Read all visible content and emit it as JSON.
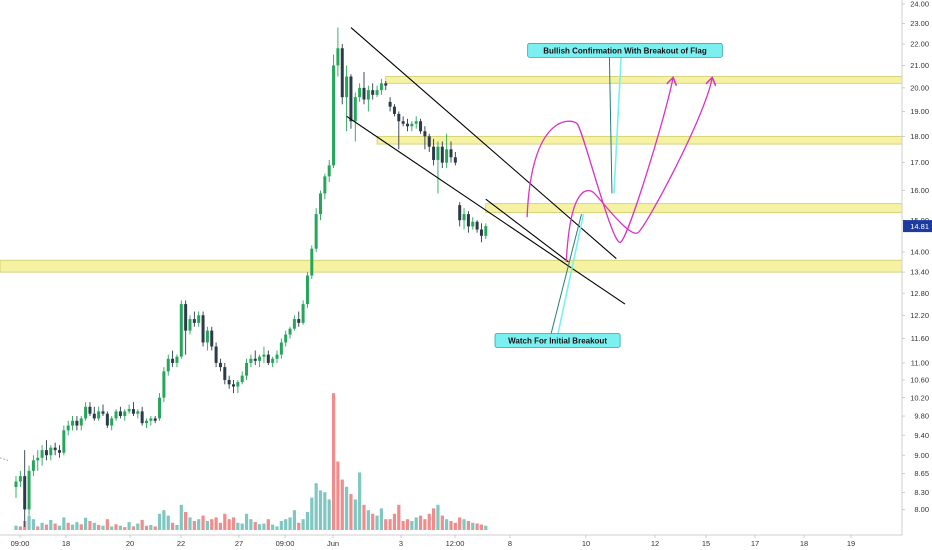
{
  "chart_data": {
    "type": "candlestick",
    "title": "",
    "xlabel": "",
    "ylabel": "",
    "y_scale": "log",
    "ylim": [
      7.65,
      24.0
    ],
    "y_ticks": [
      "24.00",
      "23.00",
      "22.00",
      "21.00",
      "20.00",
      "19.00",
      "18.00",
      "17.00",
      "16.00",
      "15.00",
      "14.00",
      "13.40",
      "12.80",
      "12.20",
      "11.60",
      "11.00",
      "10.60",
      "10.20",
      "9.80",
      "9.40",
      "9.00",
      "8.65",
      "8.30",
      "8.00"
    ],
    "x_ticks": [
      "09:00",
      "18",
      "20",
      "22",
      "27",
      "09:00",
      "Jun",
      "3",
      "12:00",
      "8",
      "10",
      "12",
      "15",
      "17",
      "18",
      "19"
    ],
    "current_price": "14.81",
    "grid": false,
    "colors": {
      "up": "#26a65b",
      "down": "#2c3a4a",
      "vol_up": "#7fc7c0",
      "vol_down": "#f08c8c",
      "zone": "#f5f29a",
      "zone_border": "#c9c55a",
      "projection": "#d633c8",
      "callout": "#7cf0f0",
      "price_tag": "#1c3aa0"
    },
    "candles": [
      [
        8.4,
        8.6,
        8.2,
        8.5
      ],
      [
        8.5,
        8.7,
        8.4,
        8.6
      ],
      [
        8.6,
        9.1,
        7.7,
        8.0
      ],
      [
        8.0,
        8.8,
        7.9,
        8.7
      ],
      [
        8.7,
        9.0,
        8.6,
        8.9
      ],
      [
        8.9,
        9.1,
        8.7,
        8.95
      ],
      [
        8.95,
        9.2,
        8.8,
        9.1
      ],
      [
        9.1,
        9.3,
        8.9,
        9.0
      ],
      [
        9.0,
        9.2,
        8.9,
        9.15
      ],
      [
        9.15,
        9.25,
        9.0,
        9.1
      ],
      [
        9.1,
        9.2,
        8.95,
        9.05
      ],
      [
        9.05,
        9.6,
        9.0,
        9.5
      ],
      [
        9.5,
        9.7,
        9.4,
        9.6
      ],
      [
        9.6,
        9.8,
        9.5,
        9.7
      ],
      [
        9.7,
        9.8,
        9.5,
        9.6
      ],
      [
        9.6,
        9.8,
        9.5,
        9.75
      ],
      [
        9.75,
        10.1,
        9.7,
        10.0
      ],
      [
        10.0,
        10.1,
        9.8,
        9.85
      ],
      [
        9.85,
        10.0,
        9.7,
        9.75
      ],
      [
        9.75,
        10.0,
        9.7,
        9.9
      ],
      [
        9.9,
        10.05,
        9.8,
        9.85
      ],
      [
        9.85,
        9.9,
        9.55,
        9.6
      ],
      [
        9.6,
        9.8,
        9.5,
        9.75
      ],
      [
        9.75,
        9.95,
        9.7,
        9.9
      ],
      [
        9.9,
        10.0,
        9.75,
        9.8
      ],
      [
        9.8,
        9.95,
        9.7,
        9.9
      ],
      [
        9.9,
        10.05,
        9.85,
        9.95
      ],
      [
        9.95,
        10.1,
        9.8,
        9.85
      ],
      [
        9.85,
        9.95,
        9.75,
        9.9
      ],
      [
        9.9,
        10.0,
        9.6,
        9.65
      ],
      [
        9.65,
        9.75,
        9.55,
        9.7
      ],
      [
        9.7,
        9.8,
        9.6,
        9.75
      ],
      [
        9.75,
        9.8,
        9.65,
        9.7
      ],
      [
        9.75,
        10.3,
        9.7,
        10.2
      ],
      [
        10.2,
        10.9,
        10.1,
        10.8
      ],
      [
        10.8,
        11.2,
        10.7,
        11.1
      ],
      [
        11.1,
        11.3,
        10.9,
        11.0
      ],
      [
        11.0,
        11.2,
        10.9,
        11.15
      ],
      [
        11.15,
        12.6,
        11.1,
        12.5
      ],
      [
        12.5,
        12.6,
        11.2,
        11.8
      ],
      [
        11.8,
        12.2,
        11.7,
        12.1
      ],
      [
        12.1,
        12.3,
        11.9,
        12.0
      ],
      [
        12.0,
        12.3,
        11.9,
        12.2
      ],
      [
        12.2,
        12.3,
        11.4,
        11.5
      ],
      [
        11.5,
        11.9,
        11.3,
        11.8
      ],
      [
        11.8,
        11.9,
        11.3,
        11.4
      ],
      [
        11.4,
        11.5,
        10.9,
        11.0
      ],
      [
        11.0,
        11.1,
        10.8,
        10.9
      ],
      [
        10.9,
        11.0,
        10.5,
        10.6
      ],
      [
        10.6,
        10.7,
        10.4,
        10.5
      ],
      [
        10.5,
        10.6,
        10.3,
        10.45
      ],
      [
        10.45,
        10.6,
        10.3,
        10.55
      ],
      [
        10.55,
        10.8,
        10.5,
        10.7
      ],
      [
        10.7,
        11.1,
        10.6,
        11.0
      ],
      [
        11.0,
        11.2,
        10.9,
        11.1
      ],
      [
        11.1,
        11.3,
        10.95,
        11.05
      ],
      [
        11.05,
        11.2,
        10.9,
        11.15
      ],
      [
        11.15,
        11.4,
        11.0,
        11.2
      ],
      [
        11.2,
        11.3,
        10.95,
        11.0
      ],
      [
        11.0,
        11.15,
        10.9,
        11.1
      ],
      [
        11.1,
        11.3,
        11.0,
        11.2
      ],
      [
        11.2,
        11.6,
        11.1,
        11.5
      ],
      [
        11.5,
        11.8,
        11.4,
        11.7
      ],
      [
        11.7,
        11.9,
        11.6,
        11.85
      ],
      [
        11.85,
        12.2,
        11.8,
        12.1
      ],
      [
        12.1,
        12.3,
        11.9,
        12.0
      ],
      [
        12.0,
        12.6,
        11.95,
        12.5
      ],
      [
        12.5,
        13.4,
        12.4,
        13.3
      ],
      [
        13.3,
        14.2,
        13.2,
        14.1
      ],
      [
        14.1,
        15.4,
        14.0,
        15.2
      ],
      [
        15.2,
        16.0,
        15.0,
        15.9
      ],
      [
        15.9,
        16.6,
        15.7,
        16.5
      ],
      [
        16.5,
        17.1,
        16.3,
        16.9
      ],
      [
        16.9,
        21.5,
        16.8,
        21.0
      ],
      [
        21.0,
        22.8,
        20.5,
        21.8
      ],
      [
        21.8,
        22.0,
        19.3,
        19.6
      ],
      [
        19.6,
        21.0,
        18.2,
        20.5
      ],
      [
        20.5,
        20.6,
        18.3,
        18.6
      ],
      [
        18.6,
        19.8,
        17.8,
        19.6
      ],
      [
        19.6,
        20.2,
        19.4,
        20.0
      ],
      [
        20.0,
        20.7,
        19.3,
        19.5
      ],
      [
        19.5,
        20.1,
        19.0,
        19.9
      ],
      [
        19.9,
        20.2,
        19.5,
        19.7
      ],
      [
        19.7,
        20.1,
        19.6,
        19.9
      ],
      [
        19.9,
        20.4,
        19.7,
        20.2
      ],
      [
        20.2,
        20.3,
        19.9,
        20.1
      ],
      [
        19.4,
        19.6,
        19.0,
        19.2
      ],
      [
        19.2,
        19.3,
        18.8,
        18.9
      ],
      [
        18.9,
        19.0,
        17.5,
        18.6
      ],
      [
        18.6,
        18.8,
        18.4,
        18.5
      ],
      [
        18.5,
        18.7,
        18.2,
        18.4
      ],
      [
        18.4,
        18.6,
        18.2,
        18.5
      ],
      [
        18.5,
        18.8,
        18.3,
        18.6
      ],
      [
        18.6,
        18.7,
        18.1,
        18.2
      ],
      [
        18.2,
        18.4,
        17.5,
        18.0
      ],
      [
        18.0,
        18.1,
        17.4,
        17.6
      ],
      [
        17.6,
        17.9,
        16.9,
        17.1
      ],
      [
        17.1,
        17.8,
        15.9,
        17.6
      ],
      [
        17.6,
        17.8,
        16.8,
        17.0
      ],
      [
        17.0,
        18.1,
        16.8,
        17.5
      ],
      [
        17.5,
        17.8,
        17.0,
        17.2
      ],
      [
        17.2,
        17.4,
        16.9,
        17.0
      ],
      [
        15.5,
        15.6,
        14.8,
        15.0
      ],
      [
        15.0,
        15.4,
        14.7,
        15.2
      ],
      [
        15.2,
        15.3,
        14.6,
        14.8
      ],
      [
        14.8,
        15.1,
        14.7,
        14.95
      ],
      [
        14.95,
        15.0,
        14.6,
        14.7
      ],
      [
        14.7,
        14.9,
        14.3,
        14.5
      ],
      [
        14.5,
        14.9,
        14.4,
        14.81
      ]
    ],
    "volumes": [
      [
        0.12,
        "up"
      ],
      [
        0.1,
        "down"
      ],
      [
        0.25,
        "down"
      ],
      [
        0.4,
        "up"
      ],
      [
        0.3,
        "up"
      ],
      [
        0.1,
        "down"
      ],
      [
        0.2,
        "up"
      ],
      [
        0.15,
        "down"
      ],
      [
        0.28,
        "up"
      ],
      [
        0.18,
        "down"
      ],
      [
        0.12,
        "up"
      ],
      [
        0.35,
        "up"
      ],
      [
        0.2,
        "down"
      ],
      [
        0.15,
        "up"
      ],
      [
        0.22,
        "up"
      ],
      [
        0.16,
        "down"
      ],
      [
        0.34,
        "up"
      ],
      [
        0.25,
        "down"
      ],
      [
        0.2,
        "up"
      ],
      [
        0.14,
        "down"
      ],
      [
        0.12,
        "up"
      ],
      [
        0.3,
        "down"
      ],
      [
        0.1,
        "up"
      ],
      [
        0.16,
        "down"
      ],
      [
        0.12,
        "up"
      ],
      [
        0.08,
        "down"
      ],
      [
        0.22,
        "up"
      ],
      [
        0.1,
        "down"
      ],
      [
        0.18,
        "up"
      ],
      [
        0.28,
        "down"
      ],
      [
        0.12,
        "down"
      ],
      [
        0.14,
        "up"
      ],
      [
        0.1,
        "down"
      ],
      [
        0.45,
        "up"
      ],
      [
        0.55,
        "up"
      ],
      [
        0.4,
        "up"
      ],
      [
        0.2,
        "down"
      ],
      [
        0.14,
        "up"
      ],
      [
        0.7,
        "up"
      ],
      [
        0.5,
        "down"
      ],
      [
        0.35,
        "up"
      ],
      [
        0.25,
        "down"
      ],
      [
        0.3,
        "up"
      ],
      [
        0.4,
        "down"
      ],
      [
        0.25,
        "up"
      ],
      [
        0.3,
        "down"
      ],
      [
        0.35,
        "down"
      ],
      [
        0.2,
        "down"
      ],
      [
        0.45,
        "down"
      ],
      [
        0.3,
        "down"
      ],
      [
        0.35,
        "down"
      ],
      [
        0.2,
        "up"
      ],
      [
        0.18,
        "up"
      ],
      [
        0.45,
        "up"
      ],
      [
        0.3,
        "up"
      ],
      [
        0.22,
        "down"
      ],
      [
        0.16,
        "up"
      ],
      [
        0.18,
        "up"
      ],
      [
        0.3,
        "down"
      ],
      [
        0.15,
        "up"
      ],
      [
        0.1,
        "up"
      ],
      [
        0.25,
        "up"
      ],
      [
        0.3,
        "up"
      ],
      [
        0.35,
        "up"
      ],
      [
        0.55,
        "up"
      ],
      [
        0.2,
        "down"
      ],
      [
        0.3,
        "up"
      ],
      [
        0.5,
        "up"
      ],
      [
        0.9,
        "up"
      ],
      [
        1.3,
        "up"
      ],
      [
        1.1,
        "up"
      ],
      [
        1.05,
        "up"
      ],
      [
        0.85,
        "up"
      ],
      [
        3.8,
        "down"
      ],
      [
        1.9,
        "down"
      ],
      [
        1.4,
        "down"
      ],
      [
        1.2,
        "up"
      ],
      [
        1.0,
        "down"
      ],
      [
        0.85,
        "up"
      ],
      [
        1.6,
        "up"
      ],
      [
        0.7,
        "down"
      ],
      [
        0.55,
        "up"
      ],
      [
        0.45,
        "down"
      ],
      [
        0.4,
        "up"
      ],
      [
        0.6,
        "up"
      ],
      [
        0.3,
        "down"
      ],
      [
        0.3,
        "down"
      ],
      [
        0.45,
        "down"
      ],
      [
        0.7,
        "down"
      ],
      [
        0.25,
        "down"
      ],
      [
        0.3,
        "down"
      ],
      [
        0.25,
        "up"
      ],
      [
        0.35,
        "up"
      ],
      [
        0.4,
        "down"
      ],
      [
        0.3,
        "down"
      ],
      [
        0.45,
        "down"
      ],
      [
        0.6,
        "down"
      ],
      [
        0.7,
        "up"
      ],
      [
        0.4,
        "down"
      ],
      [
        0.3,
        "up"
      ],
      [
        0.25,
        "down"
      ],
      [
        0.2,
        "down"
      ],
      [
        0.35,
        "down"
      ],
      [
        0.3,
        "up"
      ],
      [
        0.25,
        "down"
      ],
      [
        0.2,
        "up"
      ],
      [
        0.18,
        "down"
      ],
      [
        0.15,
        "down"
      ],
      [
        0.12,
        "up"
      ]
    ],
    "zones": [
      {
        "y_low": 13.4,
        "y_high": 13.75,
        "x_from": "start",
        "x_to": "end"
      },
      {
        "y_low": 15.25,
        "y_high": 15.55,
        "x_from": 108,
        "x_to": "end"
      },
      {
        "y_low": 17.7,
        "y_high": 18.0,
        "x_from": 83,
        "x_to": "end"
      },
      {
        "y_low": 20.2,
        "y_high": 20.5,
        "x_from": 85,
        "x_to": "end"
      }
    ],
    "channel_lines": [
      {
        "x1": 77,
        "y1": 22.8,
        "x2": 138,
        "y2": 13.8
      },
      {
        "x1": 76,
        "y1": 18.8,
        "x2": 140,
        "y2": 12.5
      },
      {
        "x1": 108,
        "y1": 15.7,
        "x2": 127,
        "y2": 13.7
      }
    ],
    "projections": [
      {
        "from": [
          117.5,
          15.1
        ],
        "peak1": [
          129,
          18.5
        ],
        "dip": [
          139,
          14.3
        ],
        "peak2": [
          151,
          20.4
        ]
      },
      {
        "from": [
          126.5,
          13.7
        ],
        "peak1": [
          133,
          15.9
        ],
        "dip": [
          143,
          14.6
        ],
        "peak2": [
          160,
          20.4
        ]
      }
    ],
    "annotations": [
      {
        "text": "Bullish Confirmation With Breakout of Flag",
        "x": 140,
        "y": 21.7,
        "arrow_to": [
          137,
          15.9
        ]
      },
      {
        "text": "Watch For Initial Breakout",
        "x": 124.5,
        "y": 11.55,
        "arrow_to": [
          130,
          15.2
        ]
      }
    ]
  }
}
